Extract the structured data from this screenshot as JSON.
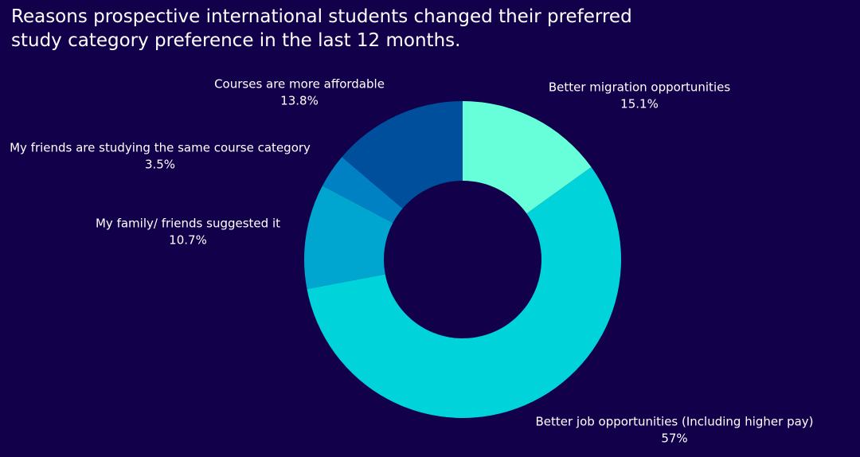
{
  "chart_data": {
    "type": "donut",
    "title": "Reasons prospective international students changed their preferred study category preference in the last 12 months.",
    "categories": [
      "Better migration opportunities",
      "Better job opportunities (Including higher pay)",
      "My family/ friends suggested it",
      "My friends are studying the same course category",
      "Courses are more affordable"
    ],
    "values": [
      15.1,
      57,
      10.7,
      3.5,
      13.8
    ],
    "value_labels": [
      "15.1%",
      "57%",
      "10.7%",
      "3.5%",
      "13.8%"
    ],
    "colors": [
      "#66ffd9",
      "#00d3d9",
      "#00a6cf",
      "#0081c4",
      "#004f9c"
    ]
  }
}
